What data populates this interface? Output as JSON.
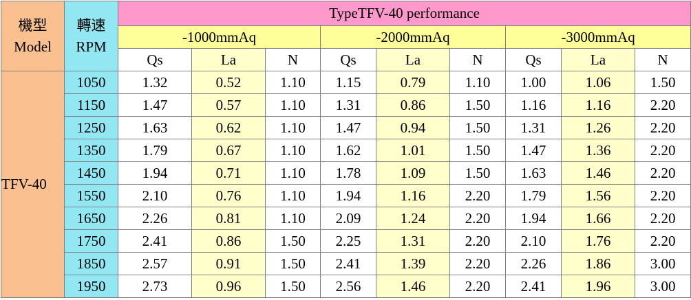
{
  "table": {
    "model_header": {
      "line1": "機型",
      "line2": "Model"
    },
    "rpm_header": {
      "line1": "轉速",
      "line2": "RPM"
    },
    "title": "TypeTFV-40 performance",
    "pressure_groups": [
      "-1000mmAq",
      "-2000mmAq",
      "-3000mmAq"
    ],
    "subheaders": [
      "Qs",
      "La",
      "N",
      "Qs",
      "La",
      "N",
      "Qs",
      "La",
      "N"
    ],
    "model": "TFV-40",
    "rows": [
      {
        "rpm": "1050",
        "values": [
          "1.32",
          "0.52",
          "1.10",
          "1.15",
          "0.79",
          "1.10",
          "1.00",
          "1.06",
          "1.50"
        ]
      },
      {
        "rpm": "1150",
        "values": [
          "1.47",
          "0.57",
          "1.10",
          "1.31",
          "0.86",
          "1.50",
          "1.16",
          "1.16",
          "2.20"
        ]
      },
      {
        "rpm": "1250",
        "values": [
          "1.63",
          "0.62",
          "1.10",
          "1.47",
          "0.94",
          "1.50",
          "1.31",
          "1.26",
          "2.20"
        ]
      },
      {
        "rpm": "1350",
        "values": [
          "1.79",
          "0.67",
          "1.10",
          "1.62",
          "1.01",
          "1.50",
          "1.47",
          "1.36",
          "2.20"
        ]
      },
      {
        "rpm": "1450",
        "values": [
          "1.94",
          "0.71",
          "1.10",
          "1.78",
          "1.09",
          "1.50",
          "1.63",
          "1.46",
          "2.20"
        ]
      },
      {
        "rpm": "1550",
        "values": [
          "2.10",
          "0.76",
          "1.10",
          "1.94",
          "1.16",
          "2.20",
          "1.79",
          "1.56",
          "2.20"
        ]
      },
      {
        "rpm": "1650",
        "values": [
          "2.26",
          "0.81",
          "1.10",
          "2.09",
          "1.24",
          "2.20",
          "1.94",
          "1.66",
          "2.20"
        ]
      },
      {
        "rpm": "1750",
        "values": [
          "2.41",
          "0.86",
          "1.50",
          "2.25",
          "1.31",
          "2.20",
          "2.10",
          "1.76",
          "2.20"
        ]
      },
      {
        "rpm": "1850",
        "values": [
          "2.57",
          "0.91",
          "1.50",
          "2.41",
          "1.39",
          "2.20",
          "2.26",
          "1.86",
          "3.00"
        ]
      },
      {
        "rpm": "1950",
        "values": [
          "2.73",
          "0.96",
          "1.50",
          "2.56",
          "1.46",
          "2.20",
          "2.41",
          "1.96",
          "3.00"
        ]
      }
    ],
    "colors": {
      "model": "#fac090",
      "rpm": "#93e7f3",
      "title": "#ff99cc",
      "pressure_header": "#ffff99",
      "la_column": "#ffffcc",
      "plain": "#ffffff",
      "grid": "#7f7f7f"
    }
  }
}
